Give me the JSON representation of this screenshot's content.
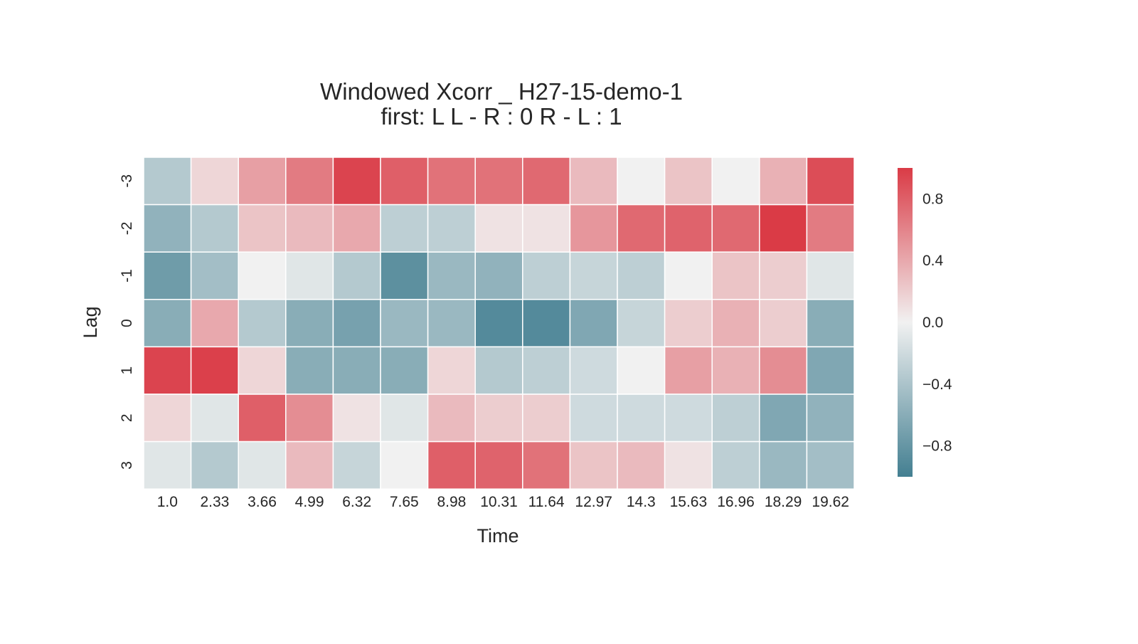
{
  "chart_data": {
    "type": "heatmap",
    "title_line1": "Windowed Xcorr  _  H27-15-demo-1",
    "title_line2": "first:  L    L - R : 0    R - L : 1",
    "xlabel": "Time",
    "ylabel": "Lag",
    "x_categories": [
      "1.0",
      "2.33",
      "3.66",
      "4.99",
      "6.32",
      "7.65",
      "8.98",
      "10.31",
      "11.64",
      "12.97",
      "14.3",
      "15.63",
      "16.96",
      "18.29",
      "19.62"
    ],
    "y_categories": [
      "-3",
      "-2",
      "-1",
      "0",
      "1",
      "2",
      "3"
    ],
    "values": [
      [
        -0.35,
        0.15,
        0.45,
        0.65,
        0.95,
        0.8,
        0.7,
        0.7,
        0.75,
        0.3,
        0.0,
        0.25,
        0.0,
        0.35,
        0.9
      ],
      [
        -0.55,
        -0.35,
        0.25,
        0.3,
        0.4,
        -0.3,
        -0.3,
        0.08,
        0.08,
        0.5,
        0.75,
        0.78,
        0.75,
        1.0,
        0.65
      ],
      [
        -0.75,
        -0.45,
        0.0,
        -0.1,
        -0.35,
        -0.85,
        -0.5,
        -0.55,
        -0.3,
        -0.25,
        -0.3,
        0.0,
        0.25,
        0.2,
        -0.1
      ],
      [
        -0.6,
        0.4,
        -0.35,
        -0.6,
        -0.7,
        -0.5,
        -0.5,
        -0.9,
        -0.9,
        -0.65,
        -0.25,
        0.2,
        0.35,
        0.2,
        -0.6
      ],
      [
        0.95,
        0.97,
        0.15,
        -0.6,
        -0.6,
        -0.6,
        0.15,
        -0.35,
        -0.3,
        -0.2,
        0.0,
        0.45,
        0.35,
        0.55,
        -0.65
      ],
      [
        0.15,
        -0.1,
        0.8,
        0.55,
        0.08,
        -0.1,
        0.3,
        0.2,
        0.2,
        -0.2,
        -0.2,
        -0.2,
        -0.3,
        -0.65,
        -0.55
      ],
      [
        -0.1,
        -0.35,
        -0.1,
        0.3,
        -0.25,
        0.0,
        0.8,
        0.78,
        0.7,
        0.25,
        0.3,
        0.08,
        -0.3,
        -0.5,
        -0.45
      ]
    ],
    "colorbar": {
      "vmin": -1.0,
      "vmax": 1.0,
      "ticks": [
        0.8,
        0.4,
        0.0,
        -0.4,
        -0.8
      ],
      "tick_labels": [
        "0.8",
        "0.4",
        "0.0",
        "−0.4",
        "−0.8"
      ]
    },
    "colormap": {
      "low": "#437f91",
      "mid": "#f1f1f1",
      "high": "#da3b46"
    },
    "grid": false,
    "cell_separator_color": "#ffffff"
  }
}
